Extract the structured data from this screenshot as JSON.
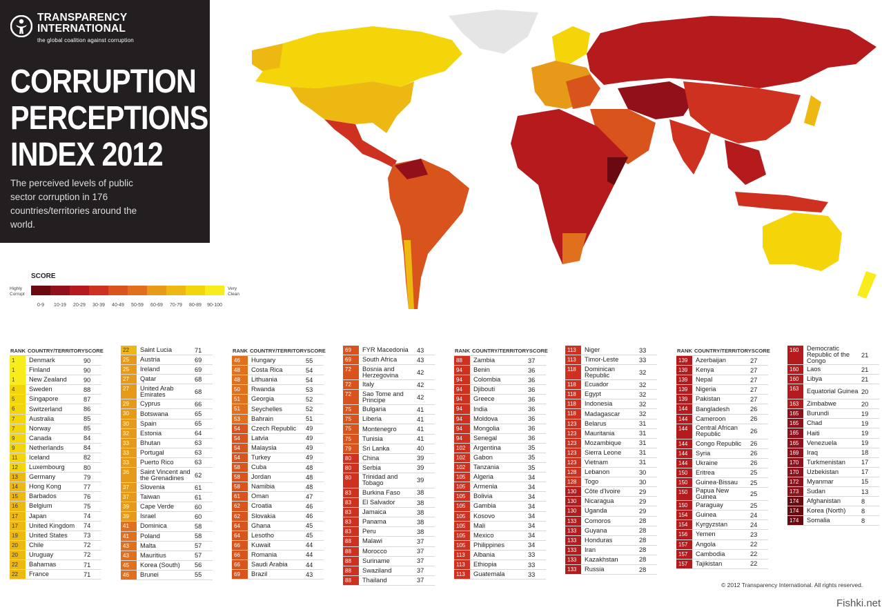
{
  "header": {
    "org_name": "TRANSPARENCY\nINTERNATIONAL",
    "tagline": "the global coalition against corruption",
    "title": "CORRUPTION\nPERCEPTIONS\nINDEX 2012",
    "subtitle": "The perceived levels of public sector corruption in 176 countries/territories around the world."
  },
  "legend": {
    "title": "SCORE",
    "low_label": "Highly\nCorrupt",
    "high_label": "Very\nClean",
    "bins": [
      "0-9",
      "10-19",
      "20-29",
      "30-39",
      "40-49",
      "50-59",
      "60-69",
      "70-79",
      "80-89",
      "90-100"
    ],
    "colors": [
      "#6a0a10",
      "#92101a",
      "#b51a1c",
      "#cf3120",
      "#d9531d",
      "#e0701e",
      "#e79a17",
      "#eeb812",
      "#f4d509",
      "#f9ec1c"
    ]
  },
  "table_headers": {
    "rank": "RANK",
    "country": "COUNTRY/TERRITORY",
    "score": "SCORE"
  },
  "chart_data": {
    "type": "table",
    "columns": [
      "RANK",
      "COUNTRY/TERRITORY",
      "SCORE"
    ],
    "rows": [
      [
        "1",
        "Denmark",
        "90"
      ],
      [
        "1",
        "Finland",
        "90"
      ],
      [
        "1",
        "New Zealand",
        "90"
      ],
      [
        "4",
        "Sweden",
        "88"
      ],
      [
        "5",
        "Singapore",
        "87"
      ],
      [
        "6",
        "Switzerland",
        "86"
      ],
      [
        "7",
        "Australia",
        "85"
      ],
      [
        "7",
        "Norway",
        "85"
      ],
      [
        "9",
        "Canada",
        "84"
      ],
      [
        "9",
        "Netherlands",
        "84"
      ],
      [
        "11",
        "Iceland",
        "82"
      ],
      [
        "12",
        "Luxembourg",
        "80"
      ],
      [
        "13",
        "Germany",
        "79"
      ],
      [
        "14",
        "Hong Kong",
        "77"
      ],
      [
        "15",
        "Barbados",
        "76"
      ],
      [
        "16",
        "Belgium",
        "75"
      ],
      [
        "17",
        "Japan",
        "74"
      ],
      [
        "17",
        "United Kingdom",
        "74"
      ],
      [
        "19",
        "United States",
        "73"
      ],
      [
        "20",
        "Chile",
        "72"
      ],
      [
        "20",
        "Uruguay",
        "72"
      ],
      [
        "22",
        "Bahamas",
        "71"
      ],
      [
        "22",
        "France",
        "71"
      ],
      [
        "22",
        "Saint Lucia",
        "71"
      ],
      [
        "25",
        "Austria",
        "69"
      ],
      [
        "25",
        "Ireland",
        "69"
      ],
      [
        "27",
        "Qatar",
        "68"
      ],
      [
        "27",
        "United Arab Emirates",
        "68"
      ],
      [
        "29",
        "Cyprus",
        "66"
      ],
      [
        "30",
        "Botswana",
        "65"
      ],
      [
        "30",
        "Spain",
        "65"
      ],
      [
        "32",
        "Estonia",
        "64"
      ],
      [
        "33",
        "Bhutan",
        "63"
      ],
      [
        "33",
        "Portugal",
        "63"
      ],
      [
        "33",
        "Puerto Rico",
        "63"
      ],
      [
        "36",
        "Saint Vincent and the Grenadines",
        "62"
      ],
      [
        "37",
        "Slovenia",
        "61"
      ],
      [
        "37",
        "Taiwan",
        "61"
      ],
      [
        "39",
        "Cape Verde",
        "60"
      ],
      [
        "39",
        "Israel",
        "60"
      ],
      [
        "41",
        "Dominica",
        "58"
      ],
      [
        "41",
        "Poland",
        "58"
      ],
      [
        "43",
        "Malta",
        "57"
      ],
      [
        "43",
        "Mauritius",
        "57"
      ],
      [
        "45",
        "Korea (South)",
        "56"
      ],
      [
        "46",
        "Brunei",
        "55"
      ],
      [
        "46",
        "Hungary",
        "55"
      ],
      [
        "48",
        "Costa Rica",
        "54"
      ],
      [
        "48",
        "Lithuania",
        "54"
      ],
      [
        "50",
        "Rwanda",
        "53"
      ],
      [
        "51",
        "Georgia",
        "52"
      ],
      [
        "51",
        "Seychelles",
        "52"
      ],
      [
        "53",
        "Bahrain",
        "51"
      ],
      [
        "54",
        "Czech Republic",
        "49"
      ],
      [
        "54",
        "Latvia",
        "49"
      ],
      [
        "54",
        "Malaysia",
        "49"
      ],
      [
        "54",
        "Turkey",
        "49"
      ],
      [
        "58",
        "Cuba",
        "48"
      ],
      [
        "58",
        "Jordan",
        "48"
      ],
      [
        "58",
        "Namibia",
        "48"
      ],
      [
        "61",
        "Oman",
        "47"
      ],
      [
        "62",
        "Croatia",
        "46"
      ],
      [
        "62",
        "Slovakia",
        "46"
      ],
      [
        "64",
        "Ghana",
        "45"
      ],
      [
        "64",
        "Lesotho",
        "45"
      ],
      [
        "66",
        "Kuwait",
        "44"
      ],
      [
        "66",
        "Romania",
        "44"
      ],
      [
        "66",
        "Saudi Arabia",
        "44"
      ],
      [
        "69",
        "Brazil",
        "43"
      ],
      [
        "69",
        "FYR Macedonia",
        "43"
      ],
      [
        "69",
        "South Africa",
        "43"
      ],
      [
        "72",
        "Bosnia and Herzegovina",
        "42"
      ],
      [
        "72",
        "Italy",
        "42"
      ],
      [
        "72",
        "Sao Tome and Principe",
        "42"
      ],
      [
        "75",
        "Bulgaria",
        "41"
      ],
      [
        "75",
        "Liberia",
        "41"
      ],
      [
        "75",
        "Montenegro",
        "41"
      ],
      [
        "75",
        "Tunisia",
        "41"
      ],
      [
        "79",
        "Sri Lanka",
        "40"
      ],
      [
        "80",
        "China",
        "39"
      ],
      [
        "80",
        "Serbia",
        "39"
      ],
      [
        "80",
        "Trinidad and Tobago",
        "39"
      ],
      [
        "83",
        "Burkina Faso",
        "38"
      ],
      [
        "83",
        "El Salvador",
        "38"
      ],
      [
        "83",
        "Jamaica",
        "38"
      ],
      [
        "83",
        "Panama",
        "38"
      ],
      [
        "83",
        "Peru",
        "38"
      ],
      [
        "88",
        "Malawi",
        "37"
      ],
      [
        "88",
        "Morocco",
        "37"
      ],
      [
        "88",
        "Suriname",
        "37"
      ],
      [
        "88",
        "Swaziland",
        "37"
      ],
      [
        "88",
        "Thailand",
        "37"
      ],
      [
        "88",
        "Zambia",
        "37"
      ],
      [
        "94",
        "Benin",
        "36"
      ],
      [
        "94",
        "Colombia",
        "36"
      ],
      [
        "94",
        "Djibouti",
        "36"
      ],
      [
        "94",
        "Greece",
        "36"
      ],
      [
        "94",
        "India",
        "36"
      ],
      [
        "94",
        "Moldova",
        "36"
      ],
      [
        "94",
        "Mongolia",
        "36"
      ],
      [
        "94",
        "Senegal",
        "36"
      ],
      [
        "102",
        "Argentina",
        "35"
      ],
      [
        "102",
        "Gabon",
        "35"
      ],
      [
        "102",
        "Tanzania",
        "35"
      ],
      [
        "105",
        "Algeria",
        "34"
      ],
      [
        "105",
        "Armenia",
        "34"
      ],
      [
        "105",
        "Bolivia",
        "34"
      ],
      [
        "105",
        "Gambia",
        "34"
      ],
      [
        "105",
        "Kosovo",
        "34"
      ],
      [
        "105",
        "Mali",
        "34"
      ],
      [
        "105",
        "Mexico",
        "34"
      ],
      [
        "105",
        "Philippines",
        "34"
      ],
      [
        "113",
        "Albania",
        "33"
      ],
      [
        "113",
        "Ethiopia",
        "33"
      ],
      [
        "113",
        "Guatemala",
        "33"
      ],
      [
        "113",
        "Niger",
        "33"
      ],
      [
        "113",
        "Timor-Leste",
        "33"
      ],
      [
        "118",
        "Dominican Republic",
        "32"
      ],
      [
        "118",
        "Ecuador",
        "32"
      ],
      [
        "118",
        "Egypt",
        "32"
      ],
      [
        "118",
        "Indonesia",
        "32"
      ],
      [
        "118",
        "Madagascar",
        "32"
      ],
      [
        "123",
        "Belarus",
        "31"
      ],
      [
        "123",
        "Mauritania",
        "31"
      ],
      [
        "123",
        "Mozambique",
        "31"
      ],
      [
        "123",
        "Sierra Leone",
        "31"
      ],
      [
        "123",
        "Vietnam",
        "31"
      ],
      [
        "128",
        "Lebanon",
        "30"
      ],
      [
        "128",
        "Togo",
        "30"
      ],
      [
        "130",
        "Côte d'Ivoire",
        "29"
      ],
      [
        "130",
        "Nicaragua",
        "29"
      ],
      [
        "130",
        "Uganda",
        "29"
      ],
      [
        "133",
        "Comoros",
        "28"
      ],
      [
        "133",
        "Guyana",
        "28"
      ],
      [
        "133",
        "Honduras",
        "28"
      ],
      [
        "133",
        "Iran",
        "28"
      ],
      [
        "133",
        "Kazakhstan",
        "28"
      ],
      [
        "133",
        "Russia",
        "28"
      ],
      [
        "139",
        "Azerbaijan",
        "27"
      ],
      [
        "139",
        "Kenya",
        "27"
      ],
      [
        "139",
        "Nepal",
        "27"
      ],
      [
        "139",
        "Nigeria",
        "27"
      ],
      [
        "139",
        "Pakistan",
        "27"
      ],
      [
        "144",
        "Bangladesh",
        "26"
      ],
      [
        "144",
        "Cameroon",
        "26"
      ],
      [
        "144",
        "Central African Republic",
        "26"
      ],
      [
        "144",
        "Congo Republic",
        "26"
      ],
      [
        "144",
        "Syria",
        "26"
      ],
      [
        "144",
        "Ukraine",
        "26"
      ],
      [
        "150",
        "Eritrea",
        "25"
      ],
      [
        "150",
        "Guinea-Bissau",
        "25"
      ],
      [
        "150",
        "Papua New Guinea",
        "25"
      ],
      [
        "150",
        "Paraguay",
        "25"
      ],
      [
        "154",
        "Guinea",
        "24"
      ],
      [
        "154",
        "Kyrgyzstan",
        "24"
      ],
      [
        "156",
        "Yemen",
        "23"
      ],
      [
        "157",
        "Angola",
        "22"
      ],
      [
        "157",
        "Cambodia",
        "22"
      ],
      [
        "157",
        "Tajikistan",
        "22"
      ],
      [
        "160",
        "Democratic Republic of the Congo",
        "21"
      ],
      [
        "160",
        "Laos",
        "21"
      ],
      [
        "160",
        "Libya",
        "21"
      ],
      [
        "163",
        "Equatorial Guinea",
        "20"
      ],
      [
        "163",
        "Zimbabwe",
        "20"
      ],
      [
        "165",
        "Burundi",
        "19"
      ],
      [
        "165",
        "Chad",
        "19"
      ],
      [
        "165",
        "Haiti",
        "19"
      ],
      [
        "165",
        "Venezuela",
        "19"
      ],
      [
        "169",
        "Iraq",
        "18"
      ],
      [
        "170",
        "Turkmenistan",
        "17"
      ],
      [
        "170",
        "Uzbekistan",
        "17"
      ],
      [
        "172",
        "Myanmar",
        "15"
      ],
      [
        "173",
        "Sudan",
        "13"
      ],
      [
        "174",
        "Afghanistan",
        "8"
      ],
      [
        "174",
        "Korea (North)",
        "8"
      ],
      [
        "174",
        "Somalia",
        "8"
      ]
    ]
  },
  "footer": {
    "copyright": "© 2012 Transparency International. All rights reserved.",
    "watermark": "Fishki.net"
  }
}
